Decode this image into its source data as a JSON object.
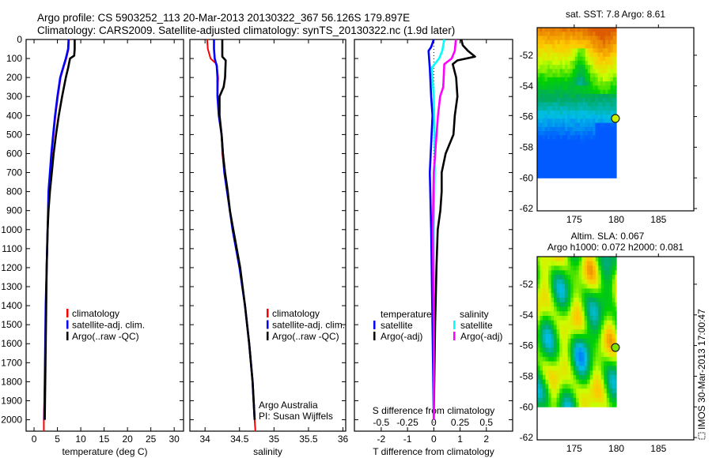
{
  "header": {
    "title_line1": "Argo profile: CS 5903252_113 20-Mar-2013 20130322_367 56.126S 179.897E",
    "title_line2": "Climatology: CARS2009. Satellite-adjusted climatology: synTS_20130322.nc (1.9d later)"
  },
  "colors": {
    "climatology": "#ff0000",
    "satellite": "#0000ff",
    "argo": "#000000",
    "sal_satellite": "#00ffff",
    "sal_argo": "#ff00ff"
  },
  "depth_axis": {
    "ticks": [
      0,
      100,
      200,
      300,
      400,
      500,
      600,
      700,
      800,
      900,
      1000,
      1100,
      1200,
      1300,
      1400,
      1500,
      1600,
      1700,
      1800,
      1900,
      2000
    ],
    "range": [
      0,
      2060
    ]
  },
  "chart_data": [
    {
      "type": "line",
      "id": "temperature",
      "xlabel": "temperature (deg C)",
      "ylabel": "depth",
      "xlim": [
        -1.7,
        32
      ],
      "xticks": [
        0,
        5,
        10,
        15,
        20,
        25,
        30
      ],
      "legend": [
        "climatology",
        "satellite-adj. clim.",
        "Argo(..raw -QC)"
      ],
      "series": [
        {
          "name": "climatology",
          "color": "#ff0000",
          "depth": [
            0,
            50,
            100,
            150,
            200,
            300,
            400,
            500,
            600,
            700,
            800,
            900,
            1000,
            1200,
            1400,
            1600,
            1800,
            2000,
            2060
          ],
          "values": [
            7.5,
            7.4,
            6.9,
            6.3,
            5.7,
            5.1,
            4.6,
            4.2,
            3.8,
            3.5,
            3.2,
            3.0,
            2.9,
            2.7,
            2.5,
            2.4,
            2.3,
            2.1,
            2.1
          ]
        },
        {
          "name": "satellite-adj. clim.",
          "color": "#0000ff",
          "depth": [
            0,
            50,
            100,
            150,
            200,
            300,
            400,
            500,
            600,
            700,
            800,
            900,
            1000,
            1200,
            1400,
            1600,
            1800,
            2000
          ],
          "values": [
            7.4,
            7.3,
            6.8,
            6.2,
            5.6,
            5.0,
            4.5,
            4.1,
            3.7,
            3.4,
            3.1,
            3.0,
            2.9,
            2.7,
            2.5,
            2.4,
            2.3,
            2.2
          ]
        },
        {
          "name": "Argo(..raw -QC)",
          "color": "#000000",
          "depth": [
            0,
            50,
            85,
            100,
            150,
            200,
            300,
            400,
            500,
            600,
            700,
            800,
            900,
            1000,
            1200,
            1400,
            1600,
            1800,
            2000
          ],
          "values": [
            8.7,
            8.7,
            8.6,
            7.7,
            7.3,
            6.8,
            6.0,
            5.3,
            4.7,
            4.2,
            3.8,
            3.4,
            3.1,
            2.9,
            2.7,
            2.6,
            2.5,
            2.4,
            2.3
          ]
        }
      ]
    },
    {
      "type": "line",
      "id": "salinity",
      "xlabel": "salinity",
      "ylabel": "depth",
      "xlim": [
        33.78,
        36.04
      ],
      "xticks": [
        34,
        34.5,
        35,
        35.5,
        36
      ],
      "legend": [
        "climatology",
        "satellite-adj. clim.",
        "Argo(..raw -QC)"
      ],
      "annotation": [
        "Argo Australia",
        "PI: Susan Wijffels"
      ],
      "series": [
        {
          "name": "climatology",
          "color": "#ff0000",
          "depth": [
            0,
            50,
            100,
            130,
            200,
            300,
            400,
            500,
            600,
            700,
            800,
            900,
            1000,
            1200,
            1400,
            1600,
            1800,
            2000,
            2060
          ],
          "values": [
            34.03,
            34.04,
            34.08,
            34.17,
            34.19,
            34.18,
            34.2,
            34.24,
            34.25,
            34.28,
            34.32,
            34.36,
            34.4,
            34.5,
            34.58,
            34.64,
            34.69,
            34.72,
            34.73
          ]
        },
        {
          "name": "satellite-adj. clim.",
          "color": "#0000ff",
          "depth": [
            0,
            50,
            100,
            140,
            200,
            300,
            400,
            500,
            600,
            700,
            800,
            900,
            1000,
            1200,
            1400,
            1600,
            1800,
            2000
          ],
          "values": [
            34.13,
            34.13,
            34.14,
            34.17,
            34.18,
            34.18,
            34.2,
            34.24,
            34.26,
            34.28,
            34.32,
            34.36,
            34.4,
            34.5,
            34.58,
            34.64,
            34.69,
            34.72
          ]
        },
        {
          "name": "Argo(..raw -QC)",
          "color": "#000000",
          "depth": [
            0,
            90,
            110,
            200,
            250,
            300,
            400,
            500,
            600,
            700,
            800,
            900,
            1000,
            1200,
            1400,
            1600,
            1800,
            2000
          ],
          "values": [
            34.25,
            34.25,
            34.3,
            34.29,
            34.27,
            34.21,
            34.21,
            34.24,
            34.26,
            34.29,
            34.33,
            34.36,
            34.41,
            34.51,
            34.58,
            34.64,
            34.69,
            34.72
          ]
        }
      ]
    },
    {
      "type": "line",
      "id": "differences",
      "xlabel": "T difference from climatology",
      "xlabel2": "S difference from climatology",
      "xlim": [
        -3.02,
        3.0
      ],
      "xticks": [
        -2,
        -1,
        0,
        1,
        2
      ],
      "xticks2": [
        -0.5,
        -0.25,
        0,
        0.25,
        0.5
      ],
      "xticks2_labels": [
        "-0.5",
        "-0.25",
        "0",
        "0.25",
        "0.5"
      ],
      "legend_headers": [
        "temperature",
        "salinity"
      ],
      "legend": [
        "satellite",
        "Argo(-adj)",
        "satellite",
        "Argo(-adj)"
      ],
      "series": [
        {
          "name": "temperature satellite",
          "color": "#0000ff",
          "axis": "T",
          "depth": [
            0,
            40,
            60,
            150,
            300,
            400,
            700,
            1000,
            1500,
            2000
          ],
          "values": [
            0,
            -0.1,
            -0.2,
            -0.15,
            -0.1,
            -0.05,
            -0.15,
            -0.1,
            -0.05,
            0
          ]
        },
        {
          "name": "temperature Argo(-adj)",
          "color": "#000000",
          "axis": "T",
          "depth": [
            0,
            30,
            60,
            90,
            110,
            130,
            200,
            300,
            400,
            500,
            600,
            700,
            800,
            900,
            1000,
            1200,
            1500,
            2000
          ],
          "values": [
            1.05,
            1.1,
            1.3,
            1.57,
            0.9,
            0.72,
            0.85,
            0.9,
            0.8,
            0.75,
            0.45,
            0.3,
            0.3,
            0.25,
            0.15,
            0.1,
            0.05,
            0
          ]
        },
        {
          "name": "salinity satellite",
          "color": "#00ffff",
          "axis": "S",
          "depth": [
            0,
            60,
            100,
            150,
            300,
            600,
            1000,
            1500,
            2000
          ],
          "values": [
            0.1,
            0.08,
            0.05,
            -0.02,
            0.0,
            0.01,
            0.0,
            0.0,
            0.0
          ]
        },
        {
          "name": "salinity Argo(-adj)",
          "color": "#ff00ff",
          "axis": "S",
          "depth": [
            0,
            60,
            100,
            130,
            250,
            300,
            400,
            700,
            1000,
            1500,
            2000
          ],
          "values": [
            0.21,
            0.2,
            0.17,
            0.1,
            0.09,
            0.06,
            0.04,
            0.0,
            -0.01,
            0.0,
            0.0
          ]
        }
      ]
    },
    {
      "type": "heatmap",
      "id": "sst-map",
      "title": "sat. SST: 7.8 Argo: 8.61",
      "xticks": [
        175,
        180,
        185
      ],
      "yticks": [
        "-52",
        "-54",
        "-56",
        "-58",
        "-60",
        "-62"
      ],
      "lon_range": [
        170.6,
        189.2
      ],
      "lat_range": [
        50.2,
        62.15
      ],
      "data_extent": {
        "lon": [
          170.6,
          180
        ],
        "lat": [
          50.2,
          60
        ]
      },
      "argo_position": {
        "lon": 179.897,
        "lat": 56.126
      }
    },
    {
      "type": "heatmap",
      "id": "sla-map",
      "title": "Altim. SLA: 0.067",
      "subtitle": "Argo h1000: 0.072 h2000: 0.081",
      "xticks": [
        175,
        180,
        185
      ],
      "yticks": [
        "-52",
        "-54",
        "-56",
        "-58",
        "-60",
        "-62"
      ],
      "lon_range": [
        170.6,
        189.2
      ],
      "lat_range": [
        50.2,
        62.15
      ],
      "data_extent": {
        "lon": [
          170.6,
          180
        ],
        "lat": [
          50.2,
          60
        ]
      },
      "argo_position": {
        "lon": 179.897,
        "lat": 56.126
      }
    }
  ],
  "footer": {
    "stamp": "IMOS 30-Mar-2013 17:00:47"
  }
}
